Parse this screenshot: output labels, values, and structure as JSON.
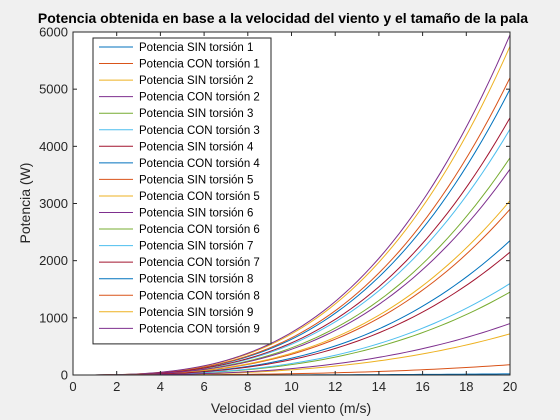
{
  "chart_data": {
    "type": "line",
    "title": "Potencia obtenida en base a la velocidad del viento y el tamaño de la pala",
    "xlabel": "Velocidad del viento (m/s)",
    "ylabel": "Potencia (W)",
    "xlim": [
      0,
      20
    ],
    "ylim": [
      0,
      6000
    ],
    "xticks": [
      "0",
      "2",
      "4",
      "6",
      "8",
      "10",
      "12",
      "14",
      "16",
      "18",
      "20"
    ],
    "yticks": [
      "0",
      "1000",
      "2000",
      "3000",
      "4000",
      "5000",
      "6000"
    ],
    "grid": false,
    "legend_position": "top-left",
    "x": [
      1,
      20
    ],
    "curve": "cubic",
    "series": [
      {
        "name": "Potencia SIN torsión 1",
        "color": "#0072BD",
        "value_at_20": 5000
      },
      {
        "name": "Potencia CON torsión 1",
        "color": "#D95319",
        "value_at_20": 5200
      },
      {
        "name": "Potencia SIN torsión 2",
        "color": "#EDB120",
        "value_at_20": 5750
      },
      {
        "name": "Potencia CON torsión 2",
        "color": "#7E2F8E",
        "value_at_20": 5950
      },
      {
        "name": "Potencia SIN torsión 3",
        "color": "#77AC30",
        "value_at_20": 3800
      },
      {
        "name": "Potencia CON torsión 3",
        "color": "#4DBEEE",
        "value_at_20": 4300
      },
      {
        "name": "Potencia SIN torsión 4",
        "color": "#A2142F",
        "value_at_20": 4500
      },
      {
        "name": "Potencia CON torsión 4",
        "color": "#0072BD",
        "value_at_20": 2350
      },
      {
        "name": "Potencia SIN torsión 5",
        "color": "#D95319",
        "value_at_20": 2900
      },
      {
        "name": "Potencia CON torsión 5",
        "color": "#EDB120",
        "value_at_20": 3050
      },
      {
        "name": "Potencia SIN torsión 6",
        "color": "#7E2F8E",
        "value_at_20": 3600
      },
      {
        "name": "Potencia CON torsión 6",
        "color": "#77AC30",
        "value_at_20": 1450
      },
      {
        "name": "Potencia SIN torsión 7",
        "color": "#4DBEEE",
        "value_at_20": 1600
      },
      {
        "name": "Potencia CON torsión 7",
        "color": "#A2142F",
        "value_at_20": 2150
      },
      {
        "name": "Potencia SIN torsión 8",
        "color": "#0072BD",
        "value_at_20": 20
      },
      {
        "name": "Potencia CON torsión 8",
        "color": "#D95319",
        "value_at_20": 180
      },
      {
        "name": "Potencia SIN torsión 9",
        "color": "#EDB120",
        "value_at_20": 720
      },
      {
        "name": "Potencia CON torsión 9",
        "color": "#7E2F8E",
        "value_at_20": 900
      }
    ]
  }
}
